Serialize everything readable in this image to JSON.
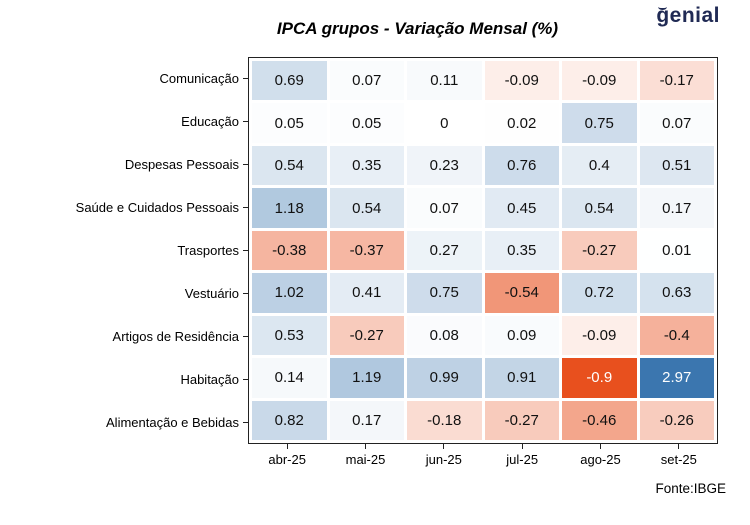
{
  "logo": {
    "text": "genial"
  },
  "title": "IPCA grupos - Variação Mensal (%)",
  "source": "Fonte:IBGE",
  "chart_data": {
    "type": "heatmap",
    "title": "IPCA grupos - Variação Mensal (%)",
    "rows": [
      "Comunicação",
      "Educação",
      "Despesas Pessoais",
      "Saúde e Cuidados Pessoais",
      "Trasportes",
      "Vestuário",
      "Artigos de Residência",
      "Habitação",
      "Alimentação e Bebidas"
    ],
    "columns": [
      "abr-25",
      "mai-25",
      "jun-25",
      "jul-25",
      "ago-25",
      "set-25"
    ],
    "values": [
      [
        0.69,
        0.07,
        0.11,
        -0.09,
        -0.09,
        -0.17
      ],
      [
        0.05,
        0.05,
        0,
        0.02,
        0.75,
        0.07
      ],
      [
        0.54,
        0.35,
        0.23,
        0.76,
        0.4,
        0.51
      ],
      [
        1.18,
        0.54,
        0.07,
        0.45,
        0.54,
        0.17
      ],
      [
        -0.38,
        -0.37,
        0.27,
        0.35,
        -0.27,
        0.01
      ],
      [
        1.02,
        0.41,
        0.75,
        -0.54,
        0.72,
        0.63
      ],
      [
        0.53,
        -0.27,
        0.08,
        0.09,
        -0.09,
        -0.4
      ],
      [
        0.14,
        1.19,
        0.99,
        0.91,
        -0.9,
        2.97
      ],
      [
        0.82,
        0.17,
        -0.18,
        -0.27,
        -0.46,
        -0.26
      ]
    ],
    "colormap": {
      "positive_max_color": "#3b76af",
      "negative_max_color": "#e8501e",
      "neutral_color": "#ffffff",
      "vmax": 2.97,
      "vmin": -0.9
    },
    "legend": "none",
    "grid": "white cell separators"
  }
}
